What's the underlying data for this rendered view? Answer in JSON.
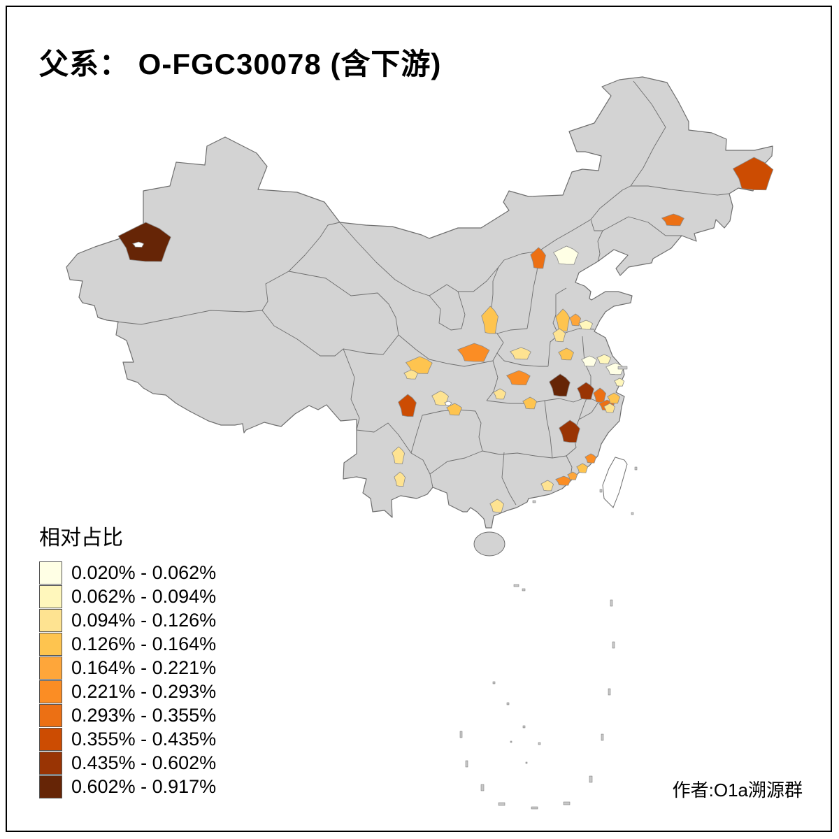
{
  "title": {
    "text": "父系： O-FGC30078 (含下游)"
  },
  "credit": {
    "text": "作者:O1a溯源群"
  },
  "legend": {
    "title": "相对占比",
    "items": [
      {
        "label": "0.020% - 0.062%",
        "color": "#FFFFE5"
      },
      {
        "label": "0.062% - 0.094%",
        "color": "#FFF7BC"
      },
      {
        "label": "0.094% - 0.126%",
        "color": "#FEE391"
      },
      {
        "label": "0.126% - 0.164%",
        "color": "#FEC44F"
      },
      {
        "label": "0.164% - 0.221%",
        "color": "#FEA63A"
      },
      {
        "label": "0.221% - 0.293%",
        "color": "#FB8D24"
      },
      {
        "label": "0.293% - 0.355%",
        "color": "#EC7014"
      },
      {
        "label": "0.355% - 0.435%",
        "color": "#CC4C02"
      },
      {
        "label": "0.435% - 0.602%",
        "color": "#993404"
      },
      {
        "label": "0.602% - 0.917%",
        "color": "#662506"
      }
    ]
  },
  "map": {
    "land_fill": "#D3D3D3",
    "border_color": "#6E6E6E",
    "taiwan_fill": "#FFFFFF",
    "island_fill": "#C8C8C8",
    "regions": [
      {
        "name": "xinjiang-west",
        "bucket": 10
      },
      {
        "name": "xinjiang-west-hole",
        "bucket": 0
      },
      {
        "name": "heilongjiang-east",
        "bucket": 8
      },
      {
        "name": "jilin-central",
        "bucket": 7
      },
      {
        "name": "beijing",
        "bucket": 7
      },
      {
        "name": "hebei-east-pale",
        "bucket": 1
      },
      {
        "name": "shaanxi-north",
        "bucket": 4
      },
      {
        "name": "shaanxi-central",
        "bucket": 6
      },
      {
        "name": "shaanxi-east",
        "bucket": 3
      },
      {
        "name": "shanxi-southeast",
        "bucket": 4
      },
      {
        "name": "shanxi-south",
        "bucket": 5
      },
      {
        "name": "henan-west",
        "bucket": 4
      },
      {
        "name": "henan-central-pale",
        "bucket": 1
      },
      {
        "name": "henan-east-pale",
        "bucket": 2
      },
      {
        "name": "shandong-south-pale",
        "bucket": 2
      },
      {
        "name": "henan-north",
        "bucket": 3
      },
      {
        "name": "hubei-northwest",
        "bucket": 6
      },
      {
        "name": "hubei-central-dark",
        "bucket": 10
      },
      {
        "name": "hubei-east-dark",
        "bucket": 9
      },
      {
        "name": "hubei-far-east",
        "bucket": 7
      },
      {
        "name": "jiangxi-northeast",
        "bucket": 7
      },
      {
        "name": "hubei-west",
        "bucket": 4
      },
      {
        "name": "hunan-east-dark",
        "bucket": 9
      },
      {
        "name": "sichuan-northwest",
        "bucket": 4
      },
      {
        "name": "gansu-south",
        "bucket": 3
      },
      {
        "name": "sichuan-southwest-dark",
        "bucket": 8
      },
      {
        "name": "sichuan-central-1",
        "bucket": 3
      },
      {
        "name": "sichuan-central-2",
        "bucket": 4
      },
      {
        "name": "sichuan-central-hole",
        "bucket": 0
      },
      {
        "name": "sichuan-east",
        "bucket": 3
      },
      {
        "name": "yunnan-northeast-1",
        "bucket": 3
      },
      {
        "name": "yunnan-northeast-2",
        "bucket": 3
      },
      {
        "name": "guangxi-east",
        "bucket": 3
      },
      {
        "name": "fujian-east",
        "bucket": 6
      },
      {
        "name": "fujian-south",
        "bucket": 4
      },
      {
        "name": "guangdong-east-1",
        "bucket": 6
      },
      {
        "name": "guangdong-east-2",
        "bucket": 5
      },
      {
        "name": "guangdong-northeast",
        "bucket": 3
      },
      {
        "name": "jiangsu-south-pale",
        "bucket": 1
      },
      {
        "name": "jiangsu-southeast-pale",
        "bucket": 2
      },
      {
        "name": "zhejiang-north",
        "bucket": 4
      },
      {
        "name": "zhejiang-central",
        "bucket": 3
      }
    ]
  }
}
